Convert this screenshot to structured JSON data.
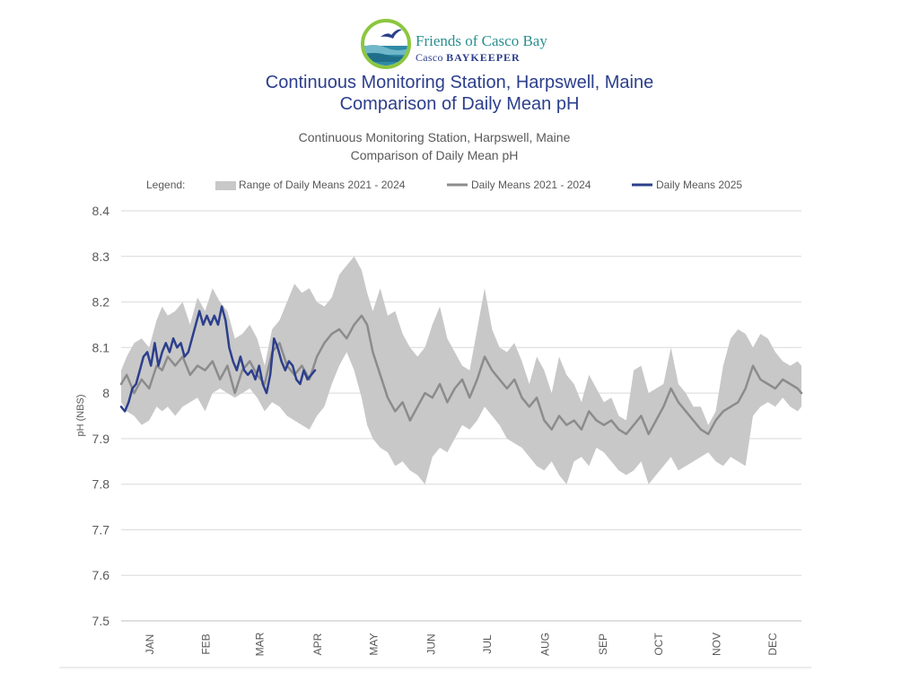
{
  "logo": {
    "name": "Friends of Casco Bay",
    "sub_prefix": "Casco ",
    "sub_emphasis": "BAYKEEPER",
    "icon": "bird-over-water-icon"
  },
  "page": {
    "title_line1": "Continuous Monitoring Station, Harpswell, Maine",
    "title_line2": "Comparison of Daily Mean pH"
  },
  "chart_data": {
    "type": "area",
    "title_line1": "Continuous Monitoring Station, Harpswell, Maine",
    "title_line2": "Comparison of Daily Mean pH",
    "ylabel": "pH (NBS)",
    "xlabel": "",
    "ylim": [
      7.5,
      8.4
    ],
    "yticks": [
      "8.4",
      "8.3",
      "8.2",
      "8.1",
      "8",
      "7.9",
      "7.8",
      "7.7",
      "7.6",
      "7.5"
    ],
    "ytick_values": [
      8.4,
      8.3,
      8.2,
      8.1,
      8.0,
      7.9,
      7.8,
      7.7,
      7.6,
      7.5
    ],
    "xlim": [
      1,
      366
    ],
    "grid": true,
    "legend_position": "top",
    "legend_label": "Legend:",
    "months": [
      {
        "label": "JAN",
        "day": 16
      },
      {
        "label": "FEB",
        "day": 46
      },
      {
        "label": "MAR",
        "day": 75
      },
      {
        "label": "APR",
        "day": 106
      },
      {
        "label": "MAY",
        "day": 136
      },
      {
        "label": "JUN",
        "day": 167
      },
      {
        "label": "JUL",
        "day": 197
      },
      {
        "label": "AUG",
        "day": 228
      },
      {
        "label": "SEP",
        "day": 259
      },
      {
        "label": "OCT",
        "day": 289
      },
      {
        "label": "NOV",
        "day": 320
      },
      {
        "label": "DEC",
        "day": 350
      }
    ],
    "colors": {
      "range": "#c8c8c8",
      "mean": "#8c8c8c",
      "current": "#2c3f8c",
      "grid": "#d9d9d9"
    },
    "series": [
      {
        "name": "Range of Daily Means 2021 - 2024",
        "type": "range",
        "x": [
          1,
          4,
          8,
          12,
          16,
          20,
          23,
          26,
          30,
          34,
          38,
          42,
          46,
          50,
          54,
          58,
          62,
          66,
          70,
          74,
          78,
          82,
          86,
          90,
          94,
          98,
          102,
          106,
          110,
          114,
          118,
          122,
          126,
          130,
          133,
          136,
          140,
          144,
          148,
          152,
          156,
          160,
          164,
          168,
          172,
          176,
          180,
          184,
          188,
          192,
          196,
          200,
          204,
          208,
          212,
          216,
          220,
          224,
          228,
          232,
          236,
          240,
          244,
          248,
          252,
          256,
          260,
          264,
          268,
          272,
          276,
          280,
          284,
          288,
          292,
          296,
          300,
          304,
          308,
          312,
          316,
          320,
          324,
          328,
          332,
          336,
          340,
          344,
          348,
          352,
          356,
          360,
          364,
          366
        ],
        "upper": [
          8.05,
          8.08,
          8.11,
          8.12,
          8.1,
          8.16,
          8.19,
          8.17,
          8.18,
          8.2,
          8.15,
          8.21,
          8.18,
          8.23,
          8.2,
          8.18,
          8.12,
          8.13,
          8.15,
          8.12,
          8.06,
          8.14,
          8.16,
          8.2,
          8.24,
          8.22,
          8.23,
          8.2,
          8.19,
          8.21,
          8.26,
          8.28,
          8.3,
          8.27,
          8.22,
          8.18,
          8.23,
          8.17,
          8.18,
          8.13,
          8.1,
          8.08,
          8.1,
          8.15,
          8.19,
          8.12,
          8.09,
          8.06,
          8.05,
          8.14,
          8.23,
          8.14,
          8.1,
          8.09,
          8.11,
          8.07,
          8.02,
          8.08,
          8.05,
          8.0,
          8.08,
          8.04,
          8.02,
          7.98,
          8.04,
          8.01,
          7.98,
          7.99,
          7.95,
          7.94,
          8.05,
          8.06,
          8.0,
          8.01,
          8.02,
          8.1,
          8.02,
          8.0,
          7.97,
          7.97,
          7.93,
          7.96,
          8.06,
          8.12,
          8.14,
          8.13,
          8.1,
          8.13,
          8.12,
          8.09,
          8.07,
          8.06,
          8.07,
          8.06
        ],
        "lower": [
          7.98,
          7.96,
          7.95,
          7.93,
          7.94,
          7.97,
          7.96,
          7.97,
          7.95,
          7.97,
          7.98,
          7.99,
          7.96,
          8.0,
          8.01,
          8.0,
          7.99,
          8.0,
          8.01,
          7.99,
          7.96,
          7.98,
          7.97,
          7.95,
          7.94,
          7.93,
          7.92,
          7.95,
          7.97,
          8.02,
          8.06,
          8.09,
          8.05,
          7.99,
          7.93,
          7.9,
          7.88,
          7.87,
          7.84,
          7.85,
          7.83,
          7.82,
          7.8,
          7.86,
          7.88,
          7.87,
          7.9,
          7.93,
          7.92,
          7.94,
          7.97,
          7.95,
          7.93,
          7.9,
          7.89,
          7.88,
          7.86,
          7.84,
          7.83,
          7.85,
          7.82,
          7.8,
          7.85,
          7.86,
          7.84,
          7.88,
          7.87,
          7.85,
          7.83,
          7.82,
          7.83,
          7.85,
          7.8,
          7.82,
          7.84,
          7.86,
          7.83,
          7.84,
          7.85,
          7.86,
          7.87,
          7.85,
          7.84,
          7.86,
          7.85,
          7.84,
          7.95,
          7.97,
          7.98,
          7.97,
          7.99,
          7.97,
          7.96,
          7.97
        ]
      },
      {
        "name": "Daily Means 2021 - 2024",
        "type": "line",
        "x": [
          1,
          4,
          8,
          12,
          16,
          20,
          23,
          26,
          30,
          34,
          38,
          42,
          46,
          50,
          54,
          58,
          62,
          66,
          70,
          74,
          78,
          82,
          86,
          90,
          94,
          98,
          102,
          106,
          110,
          114,
          118,
          122,
          126,
          130,
          133,
          136,
          140,
          144,
          148,
          152,
          156,
          160,
          164,
          168,
          172,
          176,
          180,
          184,
          188,
          192,
          196,
          200,
          204,
          208,
          212,
          216,
          220,
          224,
          228,
          232,
          236,
          240,
          244,
          248,
          252,
          256,
          260,
          264,
          268,
          272,
          276,
          280,
          284,
          288,
          292,
          296,
          300,
          304,
          308,
          312,
          316,
          320,
          324,
          328,
          332,
          336,
          340,
          344,
          348,
          352,
          356,
          360,
          364,
          366
        ],
        "values": [
          8.02,
          8.04,
          8.0,
          8.03,
          8.01,
          8.06,
          8.05,
          8.08,
          8.06,
          8.08,
          8.04,
          8.06,
          8.05,
          8.07,
          8.03,
          8.06,
          8.0,
          8.05,
          8.07,
          8.04,
          8.02,
          8.09,
          8.11,
          8.06,
          8.04,
          8.06,
          8.03,
          8.08,
          8.11,
          8.13,
          8.14,
          8.12,
          8.15,
          8.17,
          8.15,
          8.09,
          8.04,
          7.99,
          7.96,
          7.98,
          7.94,
          7.97,
          8.0,
          7.99,
          8.02,
          7.98,
          8.01,
          8.03,
          7.99,
          8.03,
          8.08,
          8.05,
          8.03,
          8.01,
          8.03,
          7.99,
          7.97,
          7.99,
          7.94,
          7.92,
          7.95,
          7.93,
          7.94,
          7.92,
          7.96,
          7.94,
          7.93,
          7.94,
          7.92,
          7.91,
          7.93,
          7.95,
          7.91,
          7.94,
          7.97,
          8.01,
          7.98,
          7.96,
          7.94,
          7.92,
          7.91,
          7.94,
          7.96,
          7.97,
          7.98,
          8.01,
          8.06,
          8.03,
          8.02,
          8.01,
          8.03,
          8.02,
          8.01,
          8.0
        ]
      },
      {
        "name": "Daily Means 2025",
        "type": "line",
        "x": [
          1,
          3,
          5,
          7,
          9,
          11,
          13,
          15,
          17,
          19,
          21,
          23,
          25,
          27,
          29,
          31,
          33,
          35,
          37,
          41,
          43,
          45,
          47,
          49,
          51,
          53,
          55,
          57,
          59,
          61,
          63,
          65,
          67,
          69,
          71,
          73,
          75,
          77,
          79,
          81,
          83,
          85,
          87,
          89,
          91,
          93,
          95,
          97,
          99,
          101,
          103,
          105
        ],
        "values": [
          7.97,
          7.96,
          7.98,
          8.01,
          8.02,
          8.05,
          8.08,
          8.09,
          8.06,
          8.11,
          8.06,
          8.09,
          8.11,
          8.09,
          8.12,
          8.1,
          8.11,
          8.08,
          8.09,
          8.15,
          8.18,
          8.15,
          8.17,
          8.15,
          8.17,
          8.15,
          8.19,
          8.16,
          8.1,
          8.07,
          8.05,
          8.08,
          8.05,
          8.04,
          8.05,
          8.03,
          8.06,
          8.02,
          8.0,
          8.04,
          8.12,
          8.1,
          8.07,
          8.05,
          8.07,
          8.06,
          8.03,
          8.02,
          8.05,
          8.03,
          8.04,
          8.05
        ]
      }
    ]
  }
}
